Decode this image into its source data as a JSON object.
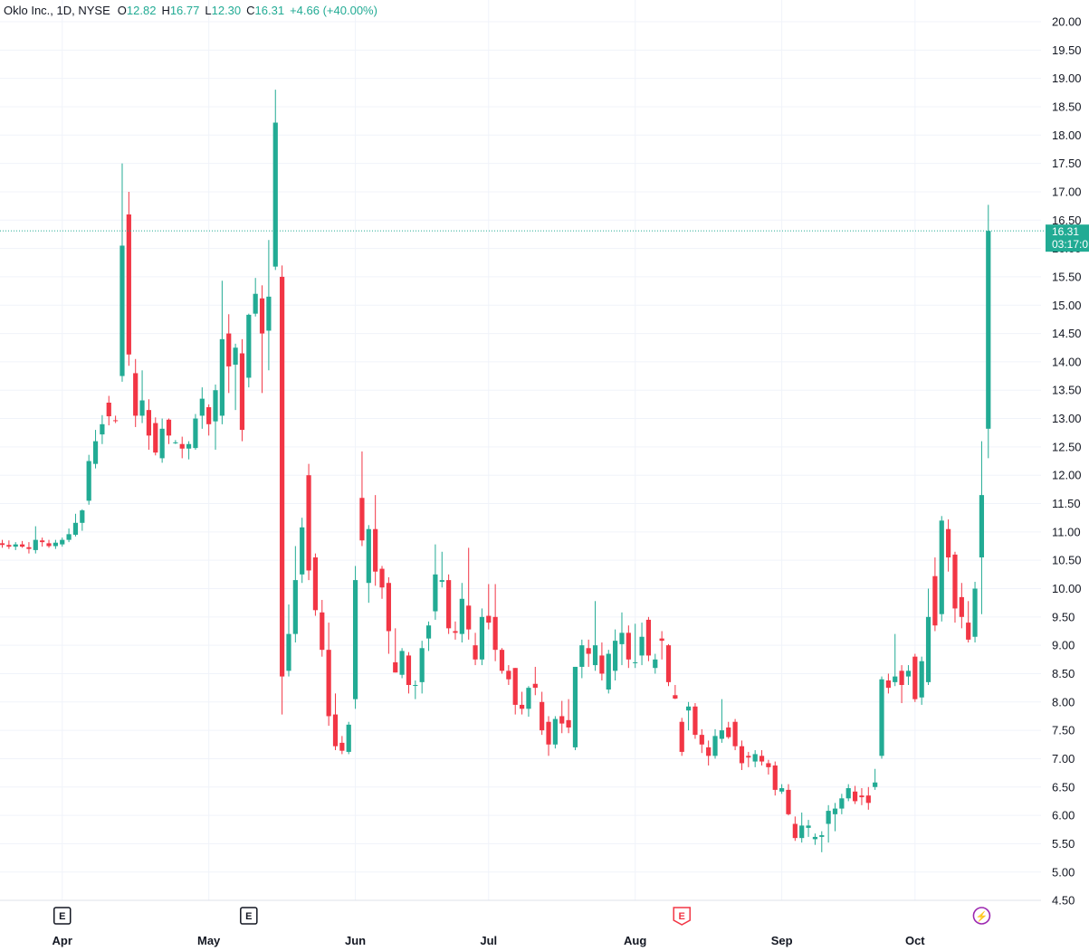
{
  "header": {
    "symbol": "Oklo Inc., 1D, NYSE",
    "open_label": "O",
    "open": "12.82",
    "high_label": "H",
    "high": "16.77",
    "low_label": "L",
    "low": "12.30",
    "close_label": "C",
    "close": "16.31",
    "change": "+4.66 (+40.00%)"
  },
  "price_tag": {
    "price": "16.31",
    "countdown": "03:17:0"
  },
  "colors": {
    "up": "#22ab94",
    "down": "#f23645",
    "grid": "#f0f3fa",
    "text": "#131722",
    "event": "#9c27b0"
  },
  "events": [
    {
      "x": "Apr 1",
      "letter": "E",
      "kind": "earnings-past"
    },
    {
      "x": "May 9",
      "letter": "E",
      "kind": "earnings-past"
    },
    {
      "x": "Aug 12",
      "letter": "E",
      "kind": "earnings-upcoming"
    },
    {
      "x": "Oct 15",
      "letter": "⚡",
      "kind": "split"
    }
  ],
  "chart_data": {
    "type": "candlestick",
    "title": "Oklo Inc., 1D, NYSE",
    "x_ticks": [
      "Apr",
      "May",
      "Jun",
      "Jul",
      "Aug",
      "Sep",
      "Oct"
    ],
    "y_ticks": [
      "4.50",
      "5.00",
      "5.50",
      "6.00",
      "6.50",
      "7.00",
      "7.50",
      "8.00",
      "8.50",
      "9.00",
      "9.50",
      "10.00",
      "10.50",
      "11.00",
      "11.50",
      "12.00",
      "12.50",
      "13.00",
      "13.50",
      "14.00",
      "14.50",
      "15.00",
      "15.50",
      "16.00",
      "16.50",
      "17.00",
      "17.50",
      "18.00",
      "18.50",
      "19.00",
      "19.50",
      "20.00"
    ],
    "ylim": [
      4.3,
      20.2
    ],
    "last_price": 16.31,
    "grid": true,
    "candles": [
      {
        "d": "Mar 18",
        "o": 10.8,
        "h": 10.86,
        "l": 10.72,
        "c": 10.77
      },
      {
        "d": "Mar 19",
        "o": 10.77,
        "h": 10.85,
        "l": 10.7,
        "c": 10.74
      },
      {
        "d": "Mar 20",
        "o": 10.74,
        "h": 10.82,
        "l": 10.68,
        "c": 10.78
      },
      {
        "d": "Mar 21",
        "o": 10.78,
        "h": 10.84,
        "l": 10.72,
        "c": 10.74
      },
      {
        "d": "Mar 22",
        "o": 10.73,
        "h": 10.82,
        "l": 10.62,
        "c": 10.7
      },
      {
        "d": "Mar 25",
        "o": 10.68,
        "h": 11.1,
        "l": 10.62,
        "c": 10.86
      },
      {
        "d": "Mar 26",
        "o": 10.85,
        "h": 10.9,
        "l": 10.74,
        "c": 10.82
      },
      {
        "d": "Mar 27",
        "o": 10.8,
        "h": 10.86,
        "l": 10.72,
        "c": 10.75
      },
      {
        "d": "Mar 28",
        "o": 10.75,
        "h": 10.86,
        "l": 10.7,
        "c": 10.81
      },
      {
        "d": "Apr 1",
        "o": 10.78,
        "h": 10.9,
        "l": 10.74,
        "c": 10.86
      },
      {
        "d": "Apr 2",
        "o": 10.86,
        "h": 11.06,
        "l": 10.82,
        "c": 10.96
      },
      {
        "d": "Apr 3",
        "o": 10.95,
        "h": 11.32,
        "l": 10.92,
        "c": 11.16
      },
      {
        "d": "Apr 4",
        "o": 11.16,
        "h": 11.4,
        "l": 11.02,
        "c": 11.38
      },
      {
        "d": "Apr 5",
        "o": 11.55,
        "h": 12.36,
        "l": 11.48,
        "c": 12.25
      },
      {
        "d": "Apr 8",
        "o": 12.2,
        "h": 12.8,
        "l": 12.12,
        "c": 12.6
      },
      {
        "d": "Apr 9",
        "o": 12.72,
        "h": 13.06,
        "l": 12.55,
        "c": 12.9
      },
      {
        "d": "Apr 10",
        "o": 13.28,
        "h": 13.4,
        "l": 12.88,
        "c": 13.04
      },
      {
        "d": "Apr 11",
        "o": 12.97,
        "h": 13.05,
        "l": 12.92,
        "c": 12.96
      },
      {
        "d": "Apr 12",
        "o": 13.75,
        "h": 17.5,
        "l": 13.65,
        "c": 16.05
      },
      {
        "d": "Apr 15",
        "o": 16.6,
        "h": 17.0,
        "l": 13.93,
        "c": 14.13
      },
      {
        "d": "Apr 16",
        "o": 13.8,
        "h": 14.05,
        "l": 12.85,
        "c": 13.05
      },
      {
        "d": "Apr 17",
        "o": 13.05,
        "h": 13.85,
        "l": 12.92,
        "c": 13.32
      },
      {
        "d": "Apr 18",
        "o": 13.15,
        "h": 13.34,
        "l": 12.45,
        "c": 12.7
      },
      {
        "d": "Apr 19",
        "o": 12.92,
        "h": 13.02,
        "l": 12.35,
        "c": 12.4
      },
      {
        "d": "Apr 22",
        "o": 12.3,
        "h": 13.0,
        "l": 12.22,
        "c": 12.82
      },
      {
        "d": "Apr 23",
        "o": 12.98,
        "h": 13.0,
        "l": 12.55,
        "c": 12.7
      },
      {
        "d": "Apr 24",
        "o": 12.58,
        "h": 12.62,
        "l": 12.55,
        "c": 12.58
      },
      {
        "d": "Apr 25",
        "o": 12.55,
        "h": 12.68,
        "l": 12.3,
        "c": 12.47
      },
      {
        "d": "Apr 26",
        "o": 12.47,
        "h": 12.6,
        "l": 12.28,
        "c": 12.55
      },
      {
        "d": "Apr 29",
        "o": 12.48,
        "h": 13.08,
        "l": 12.45,
        "c": 13.0
      },
      {
        "d": "Apr 30",
        "o": 13.05,
        "h": 13.55,
        "l": 12.82,
        "c": 13.35
      },
      {
        "d": "May 1",
        "o": 13.2,
        "h": 13.25,
        "l": 12.7,
        "c": 12.9
      },
      {
        "d": "May 2",
        "o": 12.95,
        "h": 13.6,
        "l": 12.45,
        "c": 13.5
      },
      {
        "d": "May 3",
        "o": 13.05,
        "h": 15.43,
        "l": 12.9,
        "c": 14.4
      },
      {
        "d": "May 6",
        "o": 14.5,
        "h": 14.84,
        "l": 13.45,
        "c": 13.92
      },
      {
        "d": "May 7",
        "o": 13.95,
        "h": 14.32,
        "l": 13.15,
        "c": 14.25
      },
      {
        "d": "May 8",
        "o": 14.15,
        "h": 14.4,
        "l": 12.6,
        "c": 12.8
      },
      {
        "d": "May 9",
        "o": 13.72,
        "h": 14.85,
        "l": 13.55,
        "c": 14.83
      },
      {
        "d": "May 10",
        "o": 14.85,
        "h": 15.48,
        "l": 14.8,
        "c": 15.2
      },
      {
        "d": "May 13",
        "o": 15.12,
        "h": 15.35,
        "l": 13.45,
        "c": 14.5
      },
      {
        "d": "May 14",
        "o": 14.55,
        "h": 16.15,
        "l": 13.85,
        "c": 15.15
      },
      {
        "d": "May 15",
        "o": 15.68,
        "h": 18.8,
        "l": 15.62,
        "c": 18.22
      },
      {
        "d": "May 16",
        "o": 15.5,
        "h": 15.7,
        "l": 7.78,
        "c": 8.45
      },
      {
        "d": "May 17",
        "o": 8.55,
        "h": 9.72,
        "l": 8.45,
        "c": 9.2
      },
      {
        "d": "May 20",
        "o": 9.2,
        "h": 10.75,
        "l": 9.05,
        "c": 10.15
      },
      {
        "d": "May 21",
        "o": 10.25,
        "h": 11.25,
        "l": 10.1,
        "c": 11.08
      },
      {
        "d": "May 22",
        "o": 12.0,
        "h": 12.2,
        "l": 10.15,
        "c": 10.32
      },
      {
        "d": "May 23",
        "o": 10.55,
        "h": 10.62,
        "l": 9.52,
        "c": 9.62
      },
      {
        "d": "May 24",
        "o": 9.58,
        "h": 9.8,
        "l": 8.8,
        "c": 8.92
      },
      {
        "d": "May 28",
        "o": 8.92,
        "h": 9.4,
        "l": 7.58,
        "c": 7.75
      },
      {
        "d": "May 29",
        "o": 7.78,
        "h": 8.15,
        "l": 7.15,
        "c": 7.22
      },
      {
        "d": "May 30",
        "o": 7.28,
        "h": 7.4,
        "l": 7.08,
        "c": 7.14
      },
      {
        "d": "May 31",
        "o": 7.12,
        "h": 7.65,
        "l": 7.08,
        "c": 7.6
      },
      {
        "d": "Jun 3",
        "o": 8.05,
        "h": 10.4,
        "l": 7.88,
        "c": 10.15
      },
      {
        "d": "Jun 4",
        "o": 11.6,
        "h": 12.42,
        "l": 10.75,
        "c": 10.85
      },
      {
        "d": "Jun 5",
        "o": 10.1,
        "h": 11.12,
        "l": 9.75,
        "c": 11.05
      },
      {
        "d": "Jun 6",
        "o": 11.05,
        "h": 11.65,
        "l": 10.05,
        "c": 10.3
      },
      {
        "d": "Jun 7",
        "o": 10.35,
        "h": 10.4,
        "l": 9.82,
        "c": 10.02
      },
      {
        "d": "Jun 10",
        "o": 10.1,
        "h": 10.2,
        "l": 8.85,
        "c": 9.25
      },
      {
        "d": "Jun 11",
        "o": 8.7,
        "h": 9.3,
        "l": 8.52,
        "c": 8.52
      },
      {
        "d": "Jun 12",
        "o": 8.48,
        "h": 8.95,
        "l": 8.42,
        "c": 8.9
      },
      {
        "d": "Jun 13",
        "o": 8.82,
        "h": 8.88,
        "l": 8.15,
        "c": 8.3
      },
      {
        "d": "Jun 14",
        "o": 8.3,
        "h": 8.38,
        "l": 8.05,
        "c": 8.3
      },
      {
        "d": "Jun 17",
        "o": 8.35,
        "h": 9.08,
        "l": 8.15,
        "c": 8.95
      },
      {
        "d": "Jun 18",
        "o": 9.12,
        "h": 9.42,
        "l": 8.9,
        "c": 9.35
      },
      {
        "d": "Jun 19",
        "o": 9.6,
        "h": 10.78,
        "l": 9.45,
        "c": 10.25
      },
      {
        "d": "Jun 20",
        "o": 10.12,
        "h": 10.65,
        "l": 10.02,
        "c": 10.15
      },
      {
        "d": "Jun 21",
        "o": 10.15,
        "h": 10.25,
        "l": 9.2,
        "c": 9.3
      },
      {
        "d": "Jun 24",
        "o": 9.25,
        "h": 9.42,
        "l": 9.1,
        "c": 9.22
      },
      {
        "d": "Jun 25",
        "o": 9.2,
        "h": 10.1,
        "l": 9.05,
        "c": 9.82
      },
      {
        "d": "Jun 26",
        "o": 9.7,
        "h": 10.72,
        "l": 9.1,
        "c": 9.28
      },
      {
        "d": "Jun 27",
        "o": 9.0,
        "h": 9.22,
        "l": 8.65,
        "c": 8.75
      },
      {
        "d": "Jun 28",
        "o": 8.75,
        "h": 9.65,
        "l": 8.65,
        "c": 9.5
      },
      {
        "d": "Jul 1",
        "o": 9.52,
        "h": 10.08,
        "l": 9.28,
        "c": 9.4
      },
      {
        "d": "Jul 2",
        "o": 9.5,
        "h": 10.08,
        "l": 8.72,
        "c": 8.92
      },
      {
        "d": "Jul 3",
        "o": 8.92,
        "h": 8.95,
        "l": 8.5,
        "c": 8.55
      },
      {
        "d": "Jul 5",
        "o": 8.55,
        "h": 8.65,
        "l": 8.3,
        "c": 8.4
      },
      {
        "d": "Jul 8",
        "o": 8.6,
        "h": 8.6,
        "l": 7.78,
        "c": 7.95
      },
      {
        "d": "Jul 9",
        "o": 7.95,
        "h": 8.18,
        "l": 7.78,
        "c": 7.88
      },
      {
        "d": "Jul 10",
        "o": 7.88,
        "h": 8.28,
        "l": 7.74,
        "c": 8.25
      },
      {
        "d": "Jul 11",
        "o": 8.32,
        "h": 8.62,
        "l": 8.12,
        "c": 8.25
      },
      {
        "d": "Jul 12",
        "o": 8.0,
        "h": 8.18,
        "l": 7.42,
        "c": 7.5
      },
      {
        "d": "Jul 15",
        "o": 7.65,
        "h": 7.75,
        "l": 7.05,
        "c": 7.25
      },
      {
        "d": "Jul 16",
        "o": 7.25,
        "h": 7.75,
        "l": 7.18,
        "c": 7.7
      },
      {
        "d": "Jul 17",
        "o": 7.75,
        "h": 8.02,
        "l": 7.45,
        "c": 7.62
      },
      {
        "d": "Jul 18",
        "o": 7.68,
        "h": 8.05,
        "l": 7.45,
        "c": 7.55
      },
      {
        "d": "Jul 19",
        "o": 7.2,
        "h": 8.62,
        "l": 7.15,
        "c": 8.62
      },
      {
        "d": "Jul 22",
        "o": 8.62,
        "h": 9.1,
        "l": 8.42,
        "c": 9.0
      },
      {
        "d": "Jul 23",
        "o": 8.95,
        "h": 9.1,
        "l": 8.62,
        "c": 8.85
      },
      {
        "d": "Jul 24",
        "o": 8.65,
        "h": 9.78,
        "l": 8.55,
        "c": 9.0
      },
      {
        "d": "Jul 25",
        "o": 8.82,
        "h": 9.05,
        "l": 8.38,
        "c": 8.5
      },
      {
        "d": "Jul 26",
        "o": 8.22,
        "h": 8.92,
        "l": 8.15,
        "c": 8.85
      },
      {
        "d": "Jul 29",
        "o": 8.55,
        "h": 9.28,
        "l": 8.38,
        "c": 9.08
      },
      {
        "d": "Jul 30",
        "o": 9.02,
        "h": 9.58,
        "l": 8.65,
        "c": 9.22
      },
      {
        "d": "Jul 31",
        "o": 9.22,
        "h": 9.35,
        "l": 8.6,
        "c": 8.75
      },
      {
        "d": "Aug 1",
        "o": 8.7,
        "h": 9.38,
        "l": 8.6,
        "c": 8.7
      },
      {
        "d": "Aug 2",
        "o": 8.82,
        "h": 9.4,
        "l": 8.65,
        "c": 9.15
      },
      {
        "d": "Aug 5",
        "o": 9.45,
        "h": 9.5,
        "l": 8.72,
        "c": 8.82
      },
      {
        "d": "Aug 6",
        "o": 8.6,
        "h": 8.85,
        "l": 8.5,
        "c": 8.75
      },
      {
        "d": "Aug 7",
        "o": 9.12,
        "h": 9.25,
        "l": 8.75,
        "c": 9.08
      },
      {
        "d": "Aug 8",
        "o": 9.0,
        "h": 9.02,
        "l": 8.28,
        "c": 8.35
      },
      {
        "d": "Aug 9",
        "o": 8.12,
        "h": 8.3,
        "l": 8.05,
        "c": 8.06
      },
      {
        "d": "Aug 12",
        "o": 7.65,
        "h": 7.72,
        "l": 7.05,
        "c": 7.12
      },
      {
        "d": "Aug 13",
        "o": 7.85,
        "h": 8.0,
        "l": 7.5,
        "c": 7.92
      },
      {
        "d": "Aug 14",
        "o": 7.92,
        "h": 7.98,
        "l": 7.35,
        "c": 7.42
      },
      {
        "d": "Aug 15",
        "o": 7.42,
        "h": 7.52,
        "l": 7.1,
        "c": 7.25
      },
      {
        "d": "Aug 16",
        "o": 7.2,
        "h": 7.32,
        "l": 6.88,
        "c": 7.05
      },
      {
        "d": "Aug 19",
        "o": 7.05,
        "h": 7.52,
        "l": 7.0,
        "c": 7.4
      },
      {
        "d": "Aug 20",
        "o": 7.35,
        "h": 8.05,
        "l": 7.28,
        "c": 7.5
      },
      {
        "d": "Aug 21",
        "o": 7.55,
        "h": 7.65,
        "l": 7.35,
        "c": 7.38
      },
      {
        "d": "Aug 22",
        "o": 7.65,
        "h": 7.7,
        "l": 7.15,
        "c": 7.22
      },
      {
        "d": "Aug 23",
        "o": 7.22,
        "h": 7.32,
        "l": 6.8,
        "c": 6.92
      },
      {
        "d": "Aug 26",
        "o": 7.05,
        "h": 7.12,
        "l": 6.85,
        "c": 7.02
      },
      {
        "d": "Aug 27",
        "o": 6.95,
        "h": 7.15,
        "l": 6.85,
        "c": 7.08
      },
      {
        "d": "Aug 28",
        "o": 7.05,
        "h": 7.15,
        "l": 6.88,
        "c": 6.95
      },
      {
        "d": "Aug 29",
        "o": 6.92,
        "h": 6.98,
        "l": 6.72,
        "c": 6.85
      },
      {
        "d": "Aug 30",
        "o": 6.88,
        "h": 6.95,
        "l": 6.35,
        "c": 6.45
      },
      {
        "d": "Sep 3",
        "o": 6.42,
        "h": 6.55,
        "l": 6.38,
        "c": 6.48
      },
      {
        "d": "Sep 4",
        "o": 6.45,
        "h": 6.55,
        "l": 6.0,
        "c": 6.02
      },
      {
        "d": "Sep 5",
        "o": 5.85,
        "h": 5.98,
        "l": 5.55,
        "c": 5.6
      },
      {
        "d": "Sep 6",
        "o": 5.6,
        "h": 6.05,
        "l": 5.52,
        "c": 5.82
      },
      {
        "d": "Sep 9",
        "o": 5.78,
        "h": 5.92,
        "l": 5.62,
        "c": 5.82
      },
      {
        "d": "Sep 10",
        "o": 5.58,
        "h": 5.68,
        "l": 5.48,
        "c": 5.62
      },
      {
        "d": "Sep 11",
        "o": 5.62,
        "h": 5.72,
        "l": 5.35,
        "c": 5.65
      },
      {
        "d": "Sep 12",
        "o": 5.85,
        "h": 6.18,
        "l": 5.52,
        "c": 6.08
      },
      {
        "d": "Sep 13",
        "o": 6.02,
        "h": 6.22,
        "l": 5.72,
        "c": 6.12
      },
      {
        "d": "Sep 16",
        "o": 6.12,
        "h": 6.38,
        "l": 6.02,
        "c": 6.3
      },
      {
        "d": "Sep 17",
        "o": 6.3,
        "h": 6.55,
        "l": 6.25,
        "c": 6.48
      },
      {
        "d": "Sep 18",
        "o": 6.42,
        "h": 6.52,
        "l": 6.2,
        "c": 6.25
      },
      {
        "d": "Sep 19",
        "o": 6.35,
        "h": 6.48,
        "l": 6.18,
        "c": 6.32
      },
      {
        "d": "Sep 20",
        "o": 6.35,
        "h": 6.5,
        "l": 6.1,
        "c": 6.22
      },
      {
        "d": "Sep 23",
        "o": 6.5,
        "h": 6.82,
        "l": 6.45,
        "c": 6.58
      },
      {
        "d": "Sep 24",
        "o": 7.05,
        "h": 8.45,
        "l": 7.0,
        "c": 8.4
      },
      {
        "d": "Sep 25",
        "o": 8.38,
        "h": 8.5,
        "l": 8.15,
        "c": 8.25
      },
      {
        "d": "Sep 26",
        "o": 8.35,
        "h": 9.2,
        "l": 8.28,
        "c": 8.45
      },
      {
        "d": "Sep 27",
        "o": 8.55,
        "h": 8.65,
        "l": 7.98,
        "c": 8.3
      },
      {
        "d": "Sep 30",
        "o": 8.45,
        "h": 8.65,
        "l": 8.3,
        "c": 8.55
      },
      {
        "d": "Oct 1",
        "o": 8.8,
        "h": 8.85,
        "l": 8.0,
        "c": 8.05
      },
      {
        "d": "Oct 2",
        "o": 8.08,
        "h": 8.8,
        "l": 7.95,
        "c": 8.72
      },
      {
        "d": "Oct 3",
        "o": 8.35,
        "h": 10.0,
        "l": 8.3,
        "c": 9.5
      },
      {
        "d": "Oct 4",
        "o": 10.22,
        "h": 10.55,
        "l": 9.25,
        "c": 9.35
      },
      {
        "d": "Oct 7",
        "o": 9.55,
        "h": 11.28,
        "l": 9.42,
        "c": 11.2
      },
      {
        "d": "Oct 8",
        "o": 11.05,
        "h": 11.22,
        "l": 10.3,
        "c": 10.55
      },
      {
        "d": "Oct 9",
        "o": 10.6,
        "h": 10.65,
        "l": 9.4,
        "c": 9.65
      },
      {
        "d": "Oct 10",
        "o": 9.85,
        "h": 10.1,
        "l": 9.3,
        "c": 9.5
      },
      {
        "d": "Oct 11",
        "o": 9.4,
        "h": 9.78,
        "l": 9.05,
        "c": 9.1
      },
      {
        "d": "Oct 14",
        "o": 9.15,
        "h": 10.12,
        "l": 9.05,
        "c": 10.0
      },
      {
        "d": "Oct 15",
        "o": 10.55,
        "h": 12.6,
        "l": 9.55,
        "c": 11.65
      },
      {
        "d": "Oct 16",
        "o": 12.82,
        "h": 16.77,
        "l": 12.3,
        "c": 16.31
      }
    ],
    "x_tick_dates": [
      "Apr 1",
      "May 1",
      "Jun 3",
      "Jul 1",
      "Aug 1",
      "Sep 3",
      "Oct 1"
    ]
  }
}
